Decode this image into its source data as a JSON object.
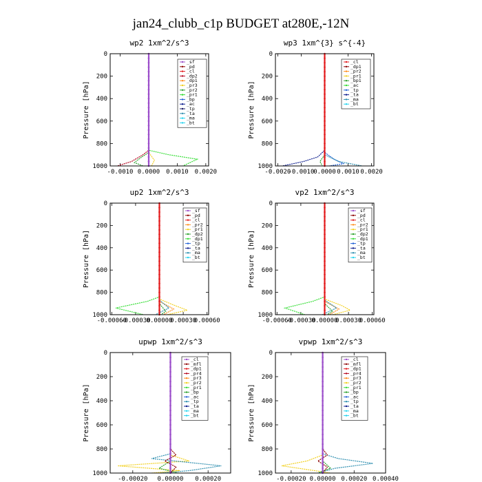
{
  "figure": {
    "title": "jan24_clubb_c1p  BUDGET at280E,-12N"
  },
  "colors": {
    "purple": "#9b4dca",
    "darkred": "#8b0000",
    "red": "#e31a1c",
    "darkred2": "#b3001b",
    "orange": "#ff8c1a",
    "yellow": "#f2d020",
    "green": "#2ca02c",
    "lime": "#33dd33",
    "blue": "#1f5fd6",
    "darkblue": "#0a1a8c",
    "navy": "#1a1a66",
    "teal": "#2f8fb0",
    "cyan": "#22d3ee"
  },
  "chart_data": [
    {
      "type": "line",
      "title": "wp2   1xm^2/s^3",
      "ylabel": "Pressure [hPa]",
      "ylim": [
        0,
        1000
      ],
      "y_reversed": true,
      "xlim": [
        -0.00135,
        0.0021
      ],
      "xticks": [
        -0.001,
        0.0,
        0.001,
        0.002
      ],
      "xtick_labels": [
        "-0.0010",
        "0.0000",
        "0.0010",
        "0.0020"
      ],
      "yticks": [
        0,
        200,
        400,
        600,
        800,
        1000
      ],
      "ytick_labels": [
        "0",
        "200",
        "400",
        "600",
        "800",
        "1000"
      ],
      "legend": [
        "_sf",
        "_pd",
        "_cl",
        "_dp2",
        "_dp1",
        "_pr3",
        "_pr2",
        "_pr1",
        "_bp",
        "_ac",
        "_tp",
        "_ta",
        "_ma",
        "_bt"
      ],
      "legend_colors": [
        "purple",
        "darkred",
        "red",
        "darkred2",
        "orange",
        "yellow",
        "green",
        "lime",
        "blue",
        "darkblue",
        "navy",
        "teal",
        "cyan",
        "cyan"
      ],
      "series": [
        {
          "color": "lime",
          "y": [
            0,
            860,
            900,
            940,
            1000
          ],
          "x": [
            0,
            0,
            0.0007,
            0.0017,
            0.0012
          ]
        },
        {
          "color": "darkred2",
          "y": [
            0,
            860,
            900,
            960,
            1000
          ],
          "x": [
            0,
            0,
            -0.0002,
            -0.0006,
            -0.0011
          ]
        },
        {
          "color": "green",
          "y": [
            0,
            880,
            930,
            970,
            1000
          ],
          "x": [
            0,
            0,
            -0.0003,
            -0.0005,
            -0.0002
          ]
        },
        {
          "color": "yellow",
          "y": [
            0,
            880,
            950,
            1000
          ],
          "x": [
            0,
            0,
            0.0002,
            0.0001
          ]
        },
        {
          "color": "purple",
          "y": [
            0,
            1000
          ],
          "x": [
            0,
            0
          ]
        }
      ]
    },
    {
      "type": "line",
      "title": "wp3   1xm^{3} s^{-4}",
      "ylabel": "Pressure [hPa]",
      "ylim": [
        0,
        1000
      ],
      "y_reversed": true,
      "xlim": [
        -0.0021,
        0.0021
      ],
      "xticks": [
        -0.002,
        -0.001,
        0.0,
        0.001,
        0.002
      ],
      "xtick_labels": [
        "-0.0020",
        "-0.0010",
        "0.0000",
        "0.0010",
        "0.0020"
      ],
      "yticks": [
        0,
        200,
        400,
        600,
        800,
        1000
      ],
      "ytick_labels": [
        "0",
        "200",
        "400",
        "600",
        "800",
        "1000"
      ],
      "legend": [
        "_cl",
        "_dp1",
        "_pr2",
        "_pr1",
        "_bp1",
        "_ac",
        "_tp",
        "_ta",
        "_ma",
        "_bt"
      ],
      "legend_colors": [
        "red",
        "darkred",
        "orange",
        "yellow",
        "green",
        "lime",
        "blue",
        "darkblue",
        "teal",
        "cyan"
      ],
      "series": [
        {
          "color": "darkblue",
          "y": [
            0,
            860,
            920,
            960,
            1000
          ],
          "x": [
            0,
            0,
            -0.0003,
            -0.0009,
            -0.0018
          ]
        },
        {
          "color": "blue",
          "y": [
            0,
            880,
            940,
            980,
            1000
          ],
          "x": [
            0,
            0,
            0.0004,
            0.0008,
            0.0002
          ]
        },
        {
          "color": "teal",
          "y": [
            0,
            900,
            960,
            1000
          ],
          "x": [
            0,
            0,
            0.0006,
            0.0016
          ]
        },
        {
          "color": "green",
          "y": [
            0,
            900,
            960,
            1000
          ],
          "x": [
            0,
            0,
            -0.0002,
            -0.0001
          ]
        },
        {
          "color": "red",
          "y": [
            0,
            1000
          ],
          "x": [
            0,
            0
          ]
        }
      ]
    },
    {
      "type": "line",
      "title": "up2   1xm^2/s^3",
      "ylabel": "Pressure [hPa]",
      "ylim": [
        0,
        1000
      ],
      "y_reversed": true,
      "xlim": [
        -0.00062,
        0.00062
      ],
      "xticks": [
        -0.0006,
        -0.0003,
        0.0,
        0.0003,
        0.0006
      ],
      "xtick_labels": [
        "-0.00060",
        "-0.00030",
        "0.00000",
        "0.00030",
        "0.00060"
      ],
      "yticks": [
        0,
        200,
        400,
        600,
        800,
        1000
      ],
      "ytick_labels": [
        "0",
        "200",
        "400",
        "600",
        "800",
        "1000"
      ],
      "legend": [
        "_sf",
        "_pd",
        "_cl",
        "_pr2",
        "_pr1",
        "_dp2",
        "_dp1",
        "_tp",
        "_ta",
        "_ma",
        "_bt"
      ],
      "legend_colors": [
        "purple",
        "darkred",
        "red",
        "orange",
        "yellow",
        "green",
        "lime",
        "blue",
        "darkblue",
        "teal",
        "cyan"
      ],
      "series": [
        {
          "color": "lime",
          "y": [
            0,
            840,
            880,
            940,
            1000
          ],
          "x": [
            0,
            0,
            -0.00015,
            -0.00055,
            -0.0002
          ]
        },
        {
          "color": "yellow",
          "y": [
            0,
            860,
            920,
            960,
            1000
          ],
          "x": [
            0,
            0,
            0.0002,
            0.00035,
            0.0001
          ]
        },
        {
          "color": "orange",
          "y": [
            0,
            880,
            950,
            1000
          ],
          "x": [
            0,
            0,
            0.00018,
            5e-05
          ]
        },
        {
          "color": "teal",
          "y": [
            0,
            870,
            940,
            1000
          ],
          "x": [
            0,
            0,
            0.00012,
            -5e-05
          ]
        },
        {
          "color": "green",
          "y": [
            0,
            900,
            970,
            1000
          ],
          "x": [
            0,
            0,
            8e-05,
            2e-05
          ]
        },
        {
          "color": "red",
          "y": [
            0,
            1000
          ],
          "x": [
            0,
            0
          ]
        }
      ]
    },
    {
      "type": "line",
      "title": "vp2   1xm^2/s^3",
      "ylabel": "Pressure [hPa]",
      "ylim": [
        0,
        1000
      ],
      "y_reversed": true,
      "xlim": [
        -0.00062,
        0.00062
      ],
      "xticks": [
        -0.0006,
        -0.0003,
        0.0,
        0.0003,
        0.0006
      ],
      "xtick_labels": [
        "-0.00060",
        "-0.00030",
        "0.00000",
        "0.00030",
        "0.00060"
      ],
      "yticks": [
        0,
        200,
        400,
        600,
        800,
        1000
      ],
      "ytick_labels": [
        "0",
        "200",
        "400",
        "600",
        "800",
        "1000"
      ],
      "legend": [
        "_sf",
        "_pd",
        "_cl",
        "_pr2",
        "_pr1",
        "_dp2",
        "_dp1",
        "_tp",
        "_ta",
        "_ma",
        "_bt"
      ],
      "legend_colors": [
        "purple",
        "darkred",
        "red",
        "orange",
        "yellow",
        "green",
        "lime",
        "blue",
        "darkblue",
        "teal",
        "cyan"
      ],
      "series": [
        {
          "color": "lime",
          "y": [
            0,
            840,
            880,
            940,
            1000
          ],
          "x": [
            0,
            0,
            -0.00015,
            -0.0005,
            -0.00025
          ]
        },
        {
          "color": "yellow",
          "y": [
            0,
            860,
            920,
            960,
            1000
          ],
          "x": [
            0,
            0,
            0.00022,
            0.00032,
            0.0001
          ]
        },
        {
          "color": "orange",
          "y": [
            0,
            880,
            950,
            1000
          ],
          "x": [
            0,
            0,
            0.00018,
            6e-05
          ]
        },
        {
          "color": "teal",
          "y": [
            0,
            870,
            940,
            1000
          ],
          "x": [
            0,
            0,
            0.00015,
            -3e-05
          ]
        },
        {
          "color": "green",
          "y": [
            0,
            900,
            970,
            1000
          ],
          "x": [
            0,
            0,
            0.0001,
            3e-05
          ]
        },
        {
          "color": "red",
          "y": [
            0,
            1000
          ],
          "x": [
            0,
            0
          ]
        }
      ]
    },
    {
      "type": "line",
      "title": "upwp   1xm^2/s^3",
      "ylabel": "Pressure [hPa]",
      "ylim": [
        0,
        1000
      ],
      "y_reversed": true,
      "xlim": [
        -0.00032,
        0.00032
      ],
      "xticks": [
        -0.0002,
        0.0,
        0.0002
      ],
      "xtick_labels": [
        "-0.00020",
        "0.00000",
        "0.00020"
      ],
      "yticks": [
        0,
        200,
        400,
        600,
        800,
        1000
      ],
      "ytick_labels": [
        "0",
        "200",
        "400",
        "600",
        "800",
        "1000"
      ],
      "legend": [
        "_cl",
        "_mfl",
        "_dp1",
        "_pr4",
        "_pr3",
        "_pr2",
        "_pr1",
        "_bp",
        "_ac",
        "_tp",
        "_ta",
        "_ma",
        "_bt"
      ],
      "legend_colors": [
        "purple",
        "darkred",
        "red",
        "darkred2",
        "orange",
        "yellow",
        "lime",
        "green",
        "blue",
        "teal",
        "darkblue",
        "cyan",
        "cyan"
      ],
      "series": [
        {
          "color": "yellow",
          "y": [
            0,
            850,
            900,
            940,
            980,
            1000
          ],
          "x": [
            0,
            0,
            0.0001,
            -0.00028,
            5e-05,
            -0.0001
          ]
        },
        {
          "color": "teal",
          "y": [
            0,
            840,
            880,
            940,
            980,
            1000
          ],
          "x": [
            0,
            0,
            -0.0001,
            0.00027,
            0.0001,
            -5e-05
          ]
        },
        {
          "color": "green",
          "y": [
            0,
            900,
            960,
            1000
          ],
          "x": [
            0,
            0,
            -6e-05,
            4e-05
          ]
        },
        {
          "color": "darkred",
          "y": [
            0,
            800,
            850,
            900,
            950,
            1000
          ],
          "x": [
            0,
            0,
            3e-05,
            -3e-05,
            3e-05,
            0
          ]
        },
        {
          "color": "purple",
          "y": [
            0,
            1000
          ],
          "x": [
            0,
            0
          ]
        }
      ]
    },
    {
      "type": "line",
      "title": "vpwp   1xm^2/s^3",
      "ylabel": "Pressure [hPa]",
      "ylim": [
        0,
        1000
      ],
      "y_reversed": true,
      "xlim": [
        -0.0003,
        0.0004
      ],
      "xticks": [
        -0.0002,
        0.0,
        0.0002,
        0.0004
      ],
      "xtick_labels": [
        "-0.00020",
        "0.00000",
        "0.00020",
        "0.00040"
      ],
      "yticks": [
        0,
        200,
        400,
        600,
        800,
        1000
      ],
      "ytick_labels": [
        "0",
        "200",
        "400",
        "600",
        "800",
        "1000"
      ],
      "legend": [
        "_cl",
        "_mfl",
        "_dp1",
        "_pr4",
        "_pr3",
        "_pr2",
        "_pr1",
        "_bp",
        "_ac",
        "_tp",
        "_ta",
        "_ma",
        "_bt"
      ],
      "legend_colors": [
        "purple",
        "darkred",
        "red",
        "darkred2",
        "orange",
        "yellow",
        "lime",
        "green",
        "blue",
        "teal",
        "darkblue",
        "cyan",
        "cyan"
      ],
      "series": [
        {
          "color": "yellow",
          "y": [
            0,
            850,
            900,
            940,
            980,
            1000
          ],
          "x": [
            0,
            0,
            -0.0001,
            -0.00026,
            -5e-05,
            5e-05
          ]
        },
        {
          "color": "teal",
          "y": [
            0,
            840,
            880,
            920,
            960,
            1000
          ],
          "x": [
            0,
            0,
            0.0001,
            0.00032,
            8e-05,
            -3e-05
          ]
        },
        {
          "color": "green",
          "y": [
            0,
            900,
            960,
            1000
          ],
          "x": [
            0,
            0,
            5e-05,
            -3e-05
          ]
        },
        {
          "color": "darkred",
          "y": [
            0,
            800,
            850,
            900,
            950,
            1000
          ],
          "x": [
            0,
            0,
            3e-05,
            -3e-05,
            3e-05,
            0
          ]
        },
        {
          "color": "purple",
          "y": [
            0,
            1000
          ],
          "x": [
            0,
            0
          ]
        }
      ]
    }
  ]
}
